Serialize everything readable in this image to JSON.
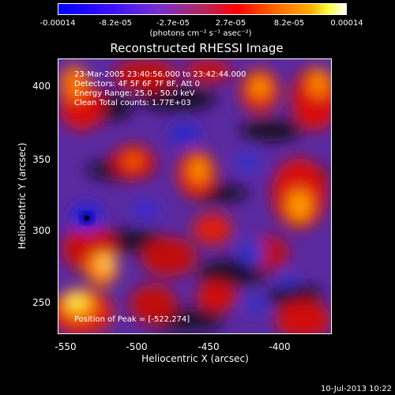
{
  "colorbar": {
    "ticks": [
      "-0.00014",
      "-8.2e-05",
      "-2.7e-05",
      "2.7e-05",
      "8.2e-05",
      "0.00014"
    ],
    "units": "(photons cm⁻² s⁻¹ asec⁻²)"
  },
  "title": "Reconstructed RHESSI Image",
  "annotations": {
    "time": "23-Mar-2005 23:40:56.000 to 23:42:44.000",
    "detectors": "Detectors: 4F 5F 6F 7F 8F, Att 0",
    "energy": "Energy Range: 25.0 - 50.0 keV",
    "clean": "Clean    Total counts: 1.77E+03",
    "peak": "Position of Peak = [-522,274]"
  },
  "axes": {
    "xlabel": "Heliocentric X (arcsec)",
    "ylabel": "Heliocentric Y (arcsec)",
    "xticks": [
      "-550",
      "-500",
      "-450",
      "-400"
    ],
    "yticks": [
      "400",
      "350",
      "300",
      "250"
    ]
  },
  "footer": {
    "date": "10-Jul-2013 10:22"
  },
  "colors": {
    "frame": "#ffffff",
    "background": "#000000"
  }
}
